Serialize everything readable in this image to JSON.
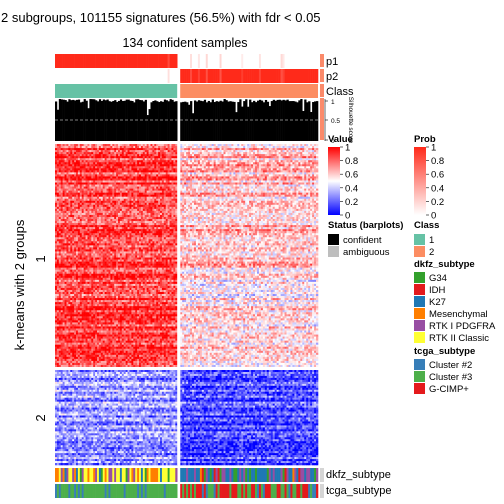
{
  "title": "2 subgroups, 101155 signatures (56.5%) with fdr < 0.05",
  "subtitle": "134 confident samples",
  "ylabel": "k-means with 2 groups",
  "colors": {
    "p_high": "#ff2a1a",
    "p_low": "#ffffff",
    "class1": "#66c2a5",
    "class2": "#fc8d62",
    "heat_high": "#ff0000",
    "heat_mid": "#ffffff",
    "heat_low": "#0000ff",
    "confident": "#000000",
    "ambiguous": "#bebebe"
  },
  "rows": {
    "p1": "p1",
    "p2": "p2",
    "class": "Class",
    "silhouette_label": "Silhouette score",
    "silhouette_ticks": [
      "1",
      "0.5",
      "0"
    ],
    "bottom1": "dkfz_subtype",
    "bottom2": "tcga_subtype"
  },
  "row_groups": [
    "1",
    "2"
  ],
  "legends": {
    "value": {
      "title": "Value",
      "ticks": [
        "1",
        "0.8",
        "0.6",
        "0.4",
        "0.2",
        "0"
      ]
    },
    "prob": {
      "title": "Prob",
      "ticks": [
        "1",
        "0.8",
        "0.6",
        "0.4",
        "0.2",
        "0"
      ]
    },
    "status": {
      "title": "Status (barplots)",
      "items": [
        {
          "label": "confident",
          "color": "#000000"
        },
        {
          "label": "ambiguous",
          "color": "#bebebe"
        }
      ]
    },
    "class": {
      "title": "Class",
      "items": [
        {
          "label": "1",
          "color": "#66c2a5"
        },
        {
          "label": "2",
          "color": "#fc8d62"
        }
      ]
    },
    "dkfz": {
      "title": "dkfz_subtype",
      "items": [
        {
          "label": "G34",
          "color": "#33a02c"
        },
        {
          "label": "IDH",
          "color": "#e31a1c"
        },
        {
          "label": "K27",
          "color": "#1f78b4"
        },
        {
          "label": "Mesenchymal",
          "color": "#ff7f00"
        },
        {
          "label": "RTK I PDGFRA",
          "color": "#984ea3"
        },
        {
          "label": "RTK II Classic",
          "color": "#ffff33"
        }
      ]
    },
    "tcga": {
      "title": "tcga_subtype",
      "items": [
        {
          "label": "Cluster #2",
          "color": "#377eb8"
        },
        {
          "label": "Cluster #3",
          "color": "#4daf4a"
        },
        {
          "label": "G-CIMP+",
          "color": "#e41a1c"
        }
      ]
    }
  },
  "chart_data": {
    "type": "heatmap",
    "title": "2 subgroups, 101155 signatures (56.5%) with fdr < 0.05",
    "subtitle": "134 confident samples",
    "ylabel": "k-means with 2 groups",
    "column_groups": [
      {
        "class": "1",
        "share": 0.47
      },
      {
        "class": "2",
        "share": 0.53
      }
    ],
    "row_groups": [
      {
        "label": "1",
        "share": 0.73
      },
      {
        "label": "2",
        "share": 0.27
      }
    ],
    "value_range": [
      0,
      1
    ],
    "silhouette_range": [
      0,
      1
    ],
    "silhouette_threshold": 0.5
  }
}
